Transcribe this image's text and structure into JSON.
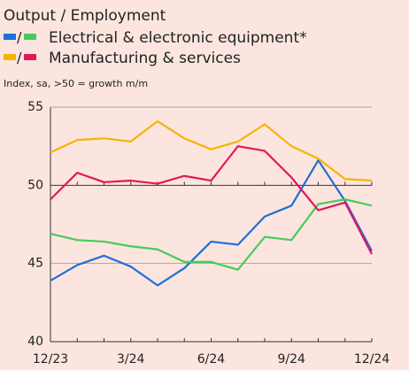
{
  "chart_data": {
    "type": "line",
    "title": "Output / Employment",
    "subtitle": "Index, sa, >50 = growth m/m",
    "legend": [
      {
        "label": "Electrical & electronic equipment*",
        "separator": "/",
        "series": [
          0,
          1
        ]
      },
      {
        "label": "Manufacturing & services",
        "separator": "/",
        "series": [
          2,
          3
        ]
      }
    ],
    "categories": [
      "12/23",
      null,
      null,
      "3/24",
      null,
      null,
      "6/24",
      null,
      null,
      "9/24",
      null,
      null,
      "12/24"
    ],
    "series": [
      {
        "color": "#1f6fd6",
        "values": [
          43.9,
          44.9,
          45.5,
          44.8,
          43.6,
          44.7,
          46.4,
          46.2,
          48.0,
          48.7,
          51.6,
          49.0,
          45.8
        ]
      },
      {
        "color": "#45cc5a",
        "values": [
          46.9,
          46.5,
          46.4,
          46.1,
          45.9,
          45.1,
          45.1,
          44.6,
          46.7,
          46.5,
          48.8,
          49.1,
          48.7
        ]
      },
      {
        "color": "#f5b400",
        "values": [
          52.1,
          52.9,
          53.0,
          52.8,
          54.1,
          53.0,
          52.3,
          52.8,
          53.9,
          52.5,
          51.7,
          50.4,
          50.3
        ]
      },
      {
        "color": "#e0195a",
        "values": [
          49.1,
          50.8,
          50.2,
          50.3,
          50.1,
          50.6,
          50.3,
          52.5,
          52.2,
          50.5,
          48.4,
          48.9,
          45.6
        ]
      }
    ],
    "ylim": [
      40,
      55
    ],
    "yticks": [
      40,
      45,
      50,
      55
    ],
    "baseline": 50,
    "grid": true
  }
}
